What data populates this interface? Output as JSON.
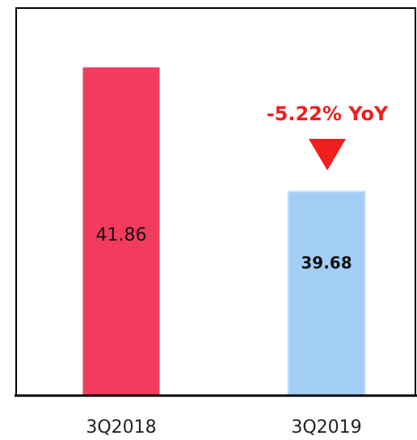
{
  "chart_data": {
    "type": "bar",
    "categories": [
      "3Q2018",
      "3Q2019"
    ],
    "values": [
      41.86,
      39.68
    ],
    "colors": [
      "#f23c5e",
      "#a3cff7"
    ],
    "ylim": [
      36.1,
      42.9
    ],
    "annotation": "-5.22% YoY"
  }
}
